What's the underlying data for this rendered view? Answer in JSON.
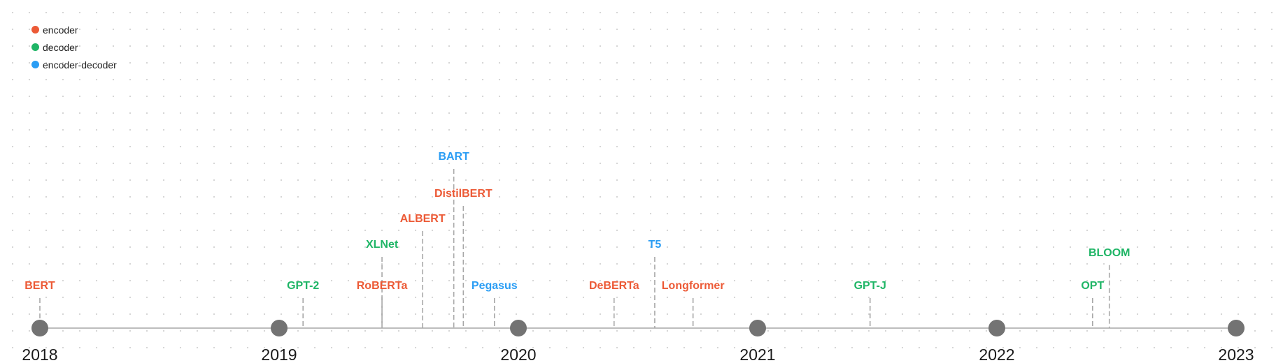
{
  "legend": {
    "items": [
      {
        "label": "encoder",
        "color": "#ec5a36"
      },
      {
        "label": "decoder",
        "color": "#1fb566"
      },
      {
        "label": "encoder-decoder",
        "color": "#2a9df4"
      }
    ]
  },
  "colors": {
    "encoder": "#ec5a36",
    "decoder": "#1fb566",
    "encoder-decoder": "#2a9df4",
    "axis": "#bdbdbd",
    "year_dot": "#737373",
    "stem": "#a8a8a8"
  },
  "chart_data": {
    "type": "timeline",
    "x_range": [
      2018,
      2023
    ],
    "years": [
      "2018",
      "2019",
      "2020",
      "2021",
      "2022",
      "2023"
    ],
    "models": [
      {
        "name": "BERT",
        "date": 2018.0,
        "type": "encoder",
        "tier": 0
      },
      {
        "name": "GPT-2",
        "date": 2019.1,
        "type": "decoder",
        "tier": 0
      },
      {
        "name": "RoBERTa",
        "date": 2019.43,
        "type": "encoder",
        "tier": 0
      },
      {
        "name": "XLNet",
        "date": 2019.43,
        "type": "decoder",
        "tier": 1
      },
      {
        "name": "ALBERT",
        "date": 2019.6,
        "type": "encoder",
        "tier": 2
      },
      {
        "name": "DistilBERT",
        "date": 2019.77,
        "type": "encoder",
        "tier": 3
      },
      {
        "name": "BART",
        "date": 2019.73,
        "type": "encoder-decoder",
        "tier": 4
      },
      {
        "name": "Pegasus",
        "date": 2019.9,
        "type": "encoder-decoder",
        "tier": 0
      },
      {
        "name": "DeBERTa",
        "date": 2020.4,
        "type": "encoder",
        "tier": 0
      },
      {
        "name": "T5",
        "date": 2020.57,
        "type": "encoder-decoder",
        "tier": 1
      },
      {
        "name": "Longformer",
        "date": 2020.73,
        "type": "encoder",
        "tier": 0
      },
      {
        "name": "GPT-J",
        "date": 2021.47,
        "type": "decoder",
        "tier": 0
      },
      {
        "name": "OPT",
        "date": 2022.4,
        "type": "decoder",
        "tier": 0
      },
      {
        "name": "BLOOM",
        "date": 2022.47,
        "type": "decoder",
        "tier": 0.8
      }
    ]
  }
}
